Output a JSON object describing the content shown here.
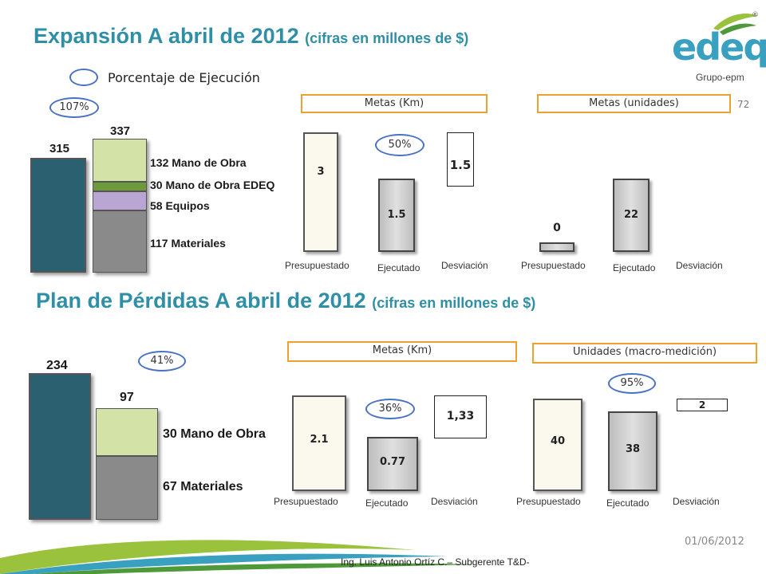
{
  "slide": {
    "title_main": "Expansión A abril de 2012",
    "title_sub": "(cifras en millones de $)",
    "title2_main": "Plan de Pérdidas  A abril de 2012",
    "title2_sub": "(cifras en millones de $)",
    "legend_label": "Porcentaje de Ejecución",
    "page_number": "72",
    "date": "01/06/2012",
    "footer": "Ing. Luis Antonio Ortíz C.– Subgerente T&D-",
    "logo_text": "edeq",
    "logo_sub": "Grupo-epm",
    "registered": "®"
  },
  "colors": {
    "title": "#2f8fa6",
    "dark_bar": "#2b6070",
    "mano_obra": "#d3e3a8",
    "mano_obra_edeq": "#6f9a3c",
    "equipos": "#b9a6d3",
    "materiales": "#8a8a8a",
    "ellipse": "#4a72c4",
    "header_border": "#f0a030"
  },
  "chart_data": [
    {
      "type": "bar",
      "id": "expansion-budget",
      "percent": "107%",
      "bars": [
        {
          "label": "",
          "value": 315,
          "value_label": "315"
        },
        {
          "label": "",
          "value": 337,
          "value_label": "337",
          "stack": [
            {
              "name": "Materiales",
              "value": 117,
              "label": "117 Materiales"
            },
            {
              "name": "Equipos",
              "value": 58,
              "label": "58 Equipos"
            },
            {
              "name": "Mano de Obra EDEQ",
              "value": 30,
              "label": "30 Mano de Obra EDEQ"
            },
            {
              "name": "Mano de Obra",
              "value": 132,
              "label": "132  Mano de Obra"
            }
          ]
        }
      ]
    },
    {
      "type": "bar",
      "id": "expansion-metas-km",
      "header": "Metas (Km)",
      "percent": "50%",
      "categories": [
        "Presupuestado",
        "Ejecutado",
        "Desviación"
      ],
      "values": [
        3,
        1.5,
        1.5
      ],
      "value_labels": [
        "3",
        "1.5",
        "1.5"
      ]
    },
    {
      "type": "bar",
      "id": "expansion-metas-unidades",
      "header": "Metas (unidades)",
      "categories": [
        "Presupuestado",
        "Ejecutado",
        "Desviación"
      ],
      "values": [
        0,
        22,
        null
      ],
      "value_labels": [
        "0",
        "22",
        ""
      ]
    },
    {
      "type": "bar",
      "id": "perdidas-budget",
      "percent": "41%",
      "bars": [
        {
          "label": "",
          "value": 234,
          "value_label": "234"
        },
        {
          "label": "",
          "value": 97,
          "value_label": "97",
          "stack": [
            {
              "name": "Materiales",
              "value": 67,
              "label": "67 Materiales"
            },
            {
              "name": "Mano de Obra",
              "value": 30,
              "label": "30 Mano de Obra"
            }
          ]
        }
      ]
    },
    {
      "type": "bar",
      "id": "perdidas-metas-km",
      "header": "Metas (Km)",
      "percent": "36%",
      "categories": [
        "Presupuestado",
        "Ejecutado",
        "Desviación"
      ],
      "values": [
        2.1,
        0.77,
        1.33
      ],
      "value_labels": [
        "2.1",
        "0.77",
        "1,33"
      ]
    },
    {
      "type": "bar",
      "id": "perdidas-unidades",
      "header": "Unidades (macro-medición)",
      "percent": "95%",
      "categories": [
        "Presupuestado",
        "Ejecutado",
        "Desviación"
      ],
      "values": [
        40,
        38,
        2
      ],
      "value_labels": [
        "40",
        "38",
        "2"
      ]
    }
  ]
}
